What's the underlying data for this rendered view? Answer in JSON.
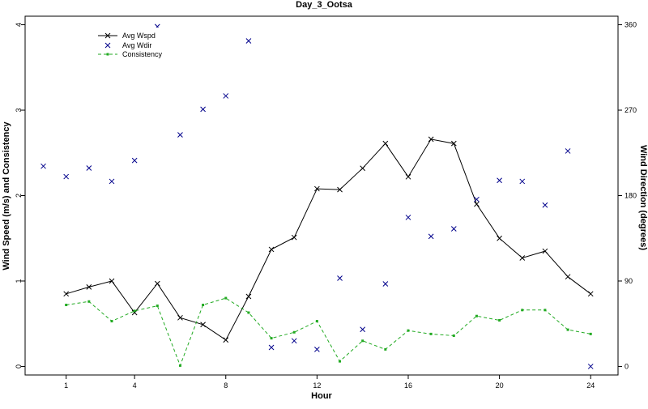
{
  "chart_data": {
    "type": "line",
    "title": "Day_3_Ootsa",
    "xlabel": "Hour",
    "ylabel": "Wind Speed (m/s) and Consistency",
    "y2label": "Wind Direction (degrees)",
    "xlim": [
      -0.8,
      25.2
    ],
    "ylim": [
      -0.1,
      4.1
    ],
    "y2lim": [
      -9,
      369
    ],
    "x_ticks": [
      1,
      4,
      8,
      12,
      16,
      20,
      24
    ],
    "y_ticks": [
      0,
      1,
      2,
      3,
      4
    ],
    "y2_ticks": [
      0,
      90,
      180,
      270,
      360
    ],
    "legend_position": "top-left",
    "grid": false,
    "series": [
      {
        "name": "Avg Wspd",
        "axis": "left",
        "style": "solid-line-x-markers",
        "color": "#000000",
        "x": [
          1,
          2,
          3,
          4,
          5,
          6,
          7,
          8,
          9,
          10,
          11,
          12,
          13,
          14,
          15,
          16,
          17,
          18,
          19,
          20,
          21,
          22,
          23,
          24
        ],
        "values": [
          0.85,
          0.93,
          1.0,
          0.63,
          0.97,
          0.57,
          0.49,
          0.31,
          0.82,
          1.37,
          1.51,
          2.08,
          2.07,
          2.32,
          2.61,
          2.22,
          2.66,
          2.61,
          1.9,
          1.5,
          1.27,
          1.35,
          1.05,
          0.85
        ]
      },
      {
        "name": "Avg Wdir",
        "axis": "right",
        "style": "x-markers",
        "color": "#00008b",
        "x": [
          0,
          1,
          2,
          3,
          4,
          5,
          6,
          7,
          8,
          9,
          10,
          11,
          12,
          13,
          14,
          15,
          16,
          17,
          18,
          19,
          20,
          21,
          22,
          23,
          24
        ],
        "values": [
          211,
          200,
          209,
          195,
          217,
          358,
          244,
          271,
          285,
          343,
          20,
          27,
          18,
          93,
          39,
          87,
          157,
          137,
          145,
          176,
          196,
          195,
          170,
          227,
          0
        ]
      },
      {
        "name": "Consistency",
        "axis": "left",
        "style": "dashed-line-square-markers",
        "color": "#22aa22",
        "x": [
          1,
          2,
          3,
          4,
          5,
          6,
          7,
          8,
          9,
          10,
          11,
          12,
          13,
          14,
          15,
          16,
          17,
          18,
          19,
          20,
          21,
          22,
          23,
          24
        ],
        "values": [
          0.72,
          0.76,
          0.53,
          0.65,
          0.71,
          0.01,
          0.72,
          0.8,
          0.63,
          0.33,
          0.4,
          0.53,
          0.06,
          0.3,
          0.2,
          0.42,
          0.38,
          0.36,
          0.59,
          0.54,
          0.66,
          0.66,
          0.43,
          0.38
        ]
      }
    ]
  }
}
